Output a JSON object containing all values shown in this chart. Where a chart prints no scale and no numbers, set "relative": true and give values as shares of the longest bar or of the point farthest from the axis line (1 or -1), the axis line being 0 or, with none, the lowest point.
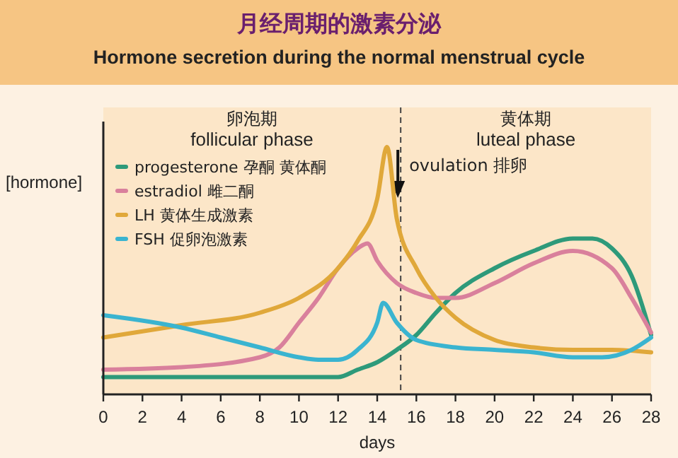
{
  "chart_data": {
    "type": "line",
    "title": "月经周期的激素分泌",
    "subtitle": "Hormone secretion during the normal menstrual cycle",
    "xlabel": "days",
    "ylabel": "[hormone]",
    "relative": true,
    "xlim": [
      0,
      28
    ],
    "xticks": [
      0,
      2,
      4,
      6,
      8,
      10,
      12,
      14,
      16,
      18,
      20,
      22,
      24,
      26,
      28
    ],
    "legend": "top left",
    "marker": "none",
    "line_style": "solid",
    "series": [
      {
        "name": "progesterone 孕酮 黄体酮",
        "color": "#2e9a7a",
        "x": [
          0,
          12,
          13,
          14,
          15,
          16,
          17,
          18,
          20,
          22,
          24,
          25,
          26,
          27,
          28
        ],
        "values": [
          0.07,
          0.07,
          0.1,
          0.13,
          0.18,
          0.24,
          0.33,
          0.41,
          0.51,
          0.58,
          0.63,
          0.63,
          0.59,
          0.48,
          0.24
        ]
      },
      {
        "name": "estradiol 雌二酮",
        "color": "#d9809c",
        "x": [
          0,
          4,
          8,
          9,
          10,
          11,
          12,
          13,
          13.5,
          14,
          15,
          16,
          17,
          18,
          20,
          22,
          24,
          26,
          27,
          28
        ],
        "values": [
          0.1,
          0.11,
          0.15,
          0.19,
          0.29,
          0.39,
          0.51,
          0.59,
          0.61,
          0.54,
          0.45,
          0.41,
          0.39,
          0.39,
          0.45,
          0.53,
          0.58,
          0.51,
          0.39,
          0.25
        ]
      },
      {
        "name": "LH 黄体生成激素",
        "color": "#e0a83a",
        "x": [
          0,
          4,
          8,
          10,
          12,
          13,
          14,
          14.5,
          15,
          16,
          17,
          18,
          20,
          22,
          24,
          26,
          28
        ],
        "values": [
          0.23,
          0.28,
          0.33,
          0.39,
          0.51,
          0.62,
          0.79,
          1,
          0.71,
          0.51,
          0.39,
          0.31,
          0.22,
          0.19,
          0.18,
          0.18,
          0.17
        ]
      },
      {
        "name": "FSH 促卵泡激素",
        "color": "#3ab4d0",
        "x": [
          0,
          4,
          6,
          8,
          10,
          11,
          12,
          13,
          14,
          14.3,
          15,
          16,
          18,
          20,
          22,
          24,
          25.5,
          27,
          28
        ],
        "values": [
          0.32,
          0.27,
          0.23,
          0.19,
          0.15,
          0.14,
          0.14,
          0.18,
          0.29,
          0.37,
          0.29,
          0.22,
          0.19,
          0.18,
          0.17,
          0.15,
          0.15,
          0.18,
          0.23
        ]
      }
    ],
    "ref_lines": [
      {
        "axis": "x",
        "value": 15.2,
        "label": "ovulation 排卵",
        "line_style": "dashed"
      }
    ],
    "bands": [
      {
        "axis": "x",
        "from": 0,
        "to": 15.2,
        "label": "卵泡期 follicular phase",
        "color": "#fce6c8"
      },
      {
        "axis": "x",
        "from": 15.2,
        "to": 28,
        "label": "黄体期 luteal phase",
        "color": "#fce6c8"
      }
    ]
  }
}
